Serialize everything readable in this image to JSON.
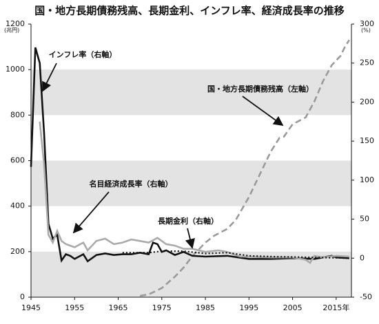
{
  "chart_data": {
    "type": "line",
    "title": "国・地方長期債務残高、長期金利、インフレ率、経済成長率の推移",
    "y_unit": "(兆円)",
    "y2_unit": "(%)",
    "xlim": [
      1945,
      2018.5
    ],
    "xticks": [
      1945,
      1955,
      1965,
      1975,
      1985,
      1995,
      2005,
      {
        "value": 2015,
        "label": "2015年"
      }
    ],
    "ylim": [
      0,
      1200
    ],
    "yticks": [
      0,
      200,
      400,
      600,
      800,
      1000,
      1200
    ],
    "y2lim": [
      -50,
      300
    ],
    "y2ticks": [
      -50,
      0,
      50,
      100,
      150,
      200,
      250,
      300
    ],
    "alternate_band_shading": true,
    "series": [
      {
        "name": "国・地方長期債務残高（左軸）",
        "color": "#9a9a9a",
        "style": "dashed",
        "axis": "y",
        "x": [
          1970,
          1972,
          1975,
          1978,
          1980,
          1982,
          1985,
          1987,
          1990,
          1992,
          1995,
          1998,
          2000,
          2002,
          2003,
          2005,
          2008,
          2010,
          2012,
          2014,
          2016,
          2017,
          2018
        ],
        "values": [
          6,
          12,
          40,
          90,
          130,
          180,
          240,
          270,
          300,
          340,
          440,
          560,
          640,
          700,
          705,
          760,
          790,
          860,
          950,
          1020,
          1060,
          1100,
          1130
        ]
      },
      {
        "name": "インフレ率（右軸）",
        "color": "#111111",
        "style": "solid",
        "axis": "y2",
        "x": [
          1945,
          1946,
          1947,
          1948,
          1949,
          1950,
          1951,
          1952,
          1953,
          1954,
          1955,
          1956,
          1957,
          1958,
          1960,
          1962,
          1964,
          1966,
          1968,
          1970,
          1972,
          1973,
          1974,
          1975,
          1976,
          1978,
          1980,
          1982,
          1985,
          1990,
          1995,
          2000,
          2005,
          2010,
          2014,
          2015,
          2018
        ],
        "values": [
          117,
          270,
          250,
          160,
          44,
          25,
          30,
          -3,
          5,
          3,
          -1,
          2,
          5,
          -4,
          4,
          6,
          4,
          5,
          5,
          7,
          5,
          20,
          18,
          8,
          10,
          4,
          8,
          3,
          2,
          3,
          -1,
          -1,
          0,
          -1,
          3,
          1,
          0
        ]
      },
      {
        "name": "名目経済成長率（右軸）",
        "color": "#aaaaaa",
        "style": "solid",
        "axis": "y2",
        "x": [
          1947,
          1948,
          1949,
          1950,
          1951,
          1952,
          1953,
          1955,
          1957,
          1958,
          1960,
          1962,
          1964,
          1966,
          1968,
          1970,
          1972,
          1974,
          1976,
          1978,
          1980,
          1982,
          1985,
          1988,
          1990,
          1993,
          1995,
          2000,
          2005,
          2008,
          2009,
          2010,
          2012,
          2015,
          2018
        ],
        "values": [
          175,
          120,
          30,
          20,
          35,
          22,
          18,
          14,
          20,
          10,
          22,
          25,
          18,
          20,
          24,
          22,
          20,
          26,
          18,
          16,
          12,
          12,
          8,
          10,
          8,
          2,
          2,
          1,
          1,
          -2,
          -6,
          3,
          1,
          3,
          2
        ]
      },
      {
        "name": "長期金利（右軸）",
        "color": "#111111",
        "style": "dotted",
        "axis": "y2",
        "x": [
          1966,
          1970,
          1972,
          1975,
          1980,
          1985,
          1990,
          1995,
          2000,
          2005,
          2010,
          2015,
          2018
        ],
        "values": [
          7,
          7,
          7,
          9,
          9,
          6,
          7,
          3,
          2,
          1.5,
          1,
          0.4,
          0.1
        ]
      }
    ]
  }
}
